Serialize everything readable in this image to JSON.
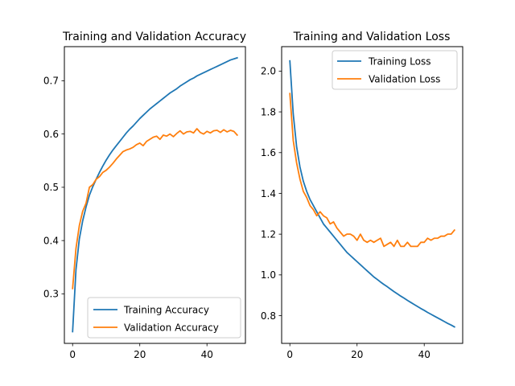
{
  "chart_data": [
    {
      "type": "line",
      "title": "Training and Validation Accuracy",
      "xlabel": "",
      "ylabel": "",
      "xlim": [
        -2.45,
        51.45
      ],
      "ylim": [
        0.207,
        0.764
      ],
      "xticks": [
        0,
        20,
        40
      ],
      "yticks": [
        0.3,
        0.4,
        0.5,
        0.6,
        0.7
      ],
      "legend": "lower right",
      "x": [
        0,
        1,
        2,
        3,
        4,
        5,
        6,
        7,
        8,
        9,
        10,
        11,
        12,
        13,
        14,
        15,
        16,
        17,
        18,
        19,
        20,
        21,
        22,
        23,
        24,
        25,
        26,
        27,
        28,
        29,
        30,
        31,
        32,
        33,
        34,
        35,
        36,
        37,
        38,
        39,
        40,
        41,
        42,
        43,
        44,
        45,
        46,
        47,
        48,
        49
      ],
      "series": [
        {
          "name": "Training Accuracy",
          "color": "#1f77b4",
          "values": [
            0.229,
            0.345,
            0.403,
            0.437,
            0.463,
            0.485,
            0.501,
            0.515,
            0.528,
            0.54,
            0.551,
            0.561,
            0.57,
            0.578,
            0.586,
            0.594,
            0.602,
            0.609,
            0.615,
            0.622,
            0.629,
            0.635,
            0.641,
            0.647,
            0.652,
            0.657,
            0.662,
            0.667,
            0.672,
            0.677,
            0.681,
            0.685,
            0.69,
            0.694,
            0.698,
            0.702,
            0.705,
            0.709,
            0.712,
            0.715,
            0.718,
            0.721,
            0.724,
            0.727,
            0.73,
            0.733,
            0.736,
            0.739,
            0.741,
            0.743
          ]
        },
        {
          "name": "Validation Accuracy",
          "color": "#ff7f0e",
          "values": [
            0.31,
            0.385,
            0.428,
            0.455,
            0.47,
            0.5,
            0.505,
            0.515,
            0.52,
            0.528,
            0.532,
            0.538,
            0.545,
            0.553,
            0.56,
            0.567,
            0.57,
            0.572,
            0.575,
            0.58,
            0.583,
            0.578,
            0.586,
            0.59,
            0.594,
            0.596,
            0.59,
            0.598,
            0.596,
            0.6,
            0.595,
            0.601,
            0.606,
            0.6,
            0.604,
            0.605,
            0.602,
            0.61,
            0.603,
            0.6,
            0.605,
            0.602,
            0.606,
            0.607,
            0.603,
            0.608,
            0.604,
            0.607,
            0.605,
            0.598
          ]
        }
      ]
    },
    {
      "type": "line",
      "title": "Training and Validation Loss",
      "xlabel": "",
      "ylabel": "",
      "xlim": [
        -2.45,
        51.45
      ],
      "ylim": [
        0.664,
        2.12
      ],
      "xticks": [
        0,
        20,
        40
      ],
      "yticks": [
        0.8,
        1.0,
        1.2,
        1.4,
        1.6,
        1.8,
        2.0
      ],
      "legend": "upper right",
      "x": [
        0,
        1,
        2,
        3,
        4,
        5,
        6,
        7,
        8,
        9,
        10,
        11,
        12,
        13,
        14,
        15,
        16,
        17,
        18,
        19,
        20,
        21,
        22,
        23,
        24,
        25,
        26,
        27,
        28,
        29,
        30,
        31,
        32,
        33,
        34,
        35,
        36,
        37,
        38,
        39,
        40,
        41,
        42,
        43,
        44,
        45,
        46,
        47,
        48,
        49
      ],
      "series": [
        {
          "name": "Training Loss",
          "color": "#1f77b4",
          "values": [
            2.05,
            1.79,
            1.63,
            1.53,
            1.46,
            1.41,
            1.37,
            1.34,
            1.31,
            1.28,
            1.25,
            1.23,
            1.21,
            1.19,
            1.17,
            1.15,
            1.13,
            1.11,
            1.095,
            1.08,
            1.065,
            1.05,
            1.035,
            1.02,
            1.005,
            0.99,
            0.978,
            0.965,
            0.953,
            0.942,
            0.93,
            0.918,
            0.907,
            0.896,
            0.886,
            0.875,
            0.865,
            0.855,
            0.845,
            0.835,
            0.826,
            0.816,
            0.807,
            0.798,
            0.789,
            0.78,
            0.771,
            0.762,
            0.754,
            0.745
          ]
        },
        {
          "name": "Validation Loss",
          "color": "#ff7f0e",
          "values": [
            1.89,
            1.66,
            1.55,
            1.47,
            1.41,
            1.38,
            1.34,
            1.32,
            1.29,
            1.31,
            1.29,
            1.28,
            1.25,
            1.26,
            1.23,
            1.21,
            1.19,
            1.2,
            1.2,
            1.19,
            1.17,
            1.2,
            1.17,
            1.16,
            1.17,
            1.16,
            1.17,
            1.18,
            1.14,
            1.15,
            1.16,
            1.14,
            1.17,
            1.14,
            1.14,
            1.16,
            1.14,
            1.14,
            1.14,
            1.16,
            1.16,
            1.18,
            1.17,
            1.18,
            1.18,
            1.19,
            1.19,
            1.2,
            1.2,
            1.22
          ]
        }
      ]
    }
  ]
}
